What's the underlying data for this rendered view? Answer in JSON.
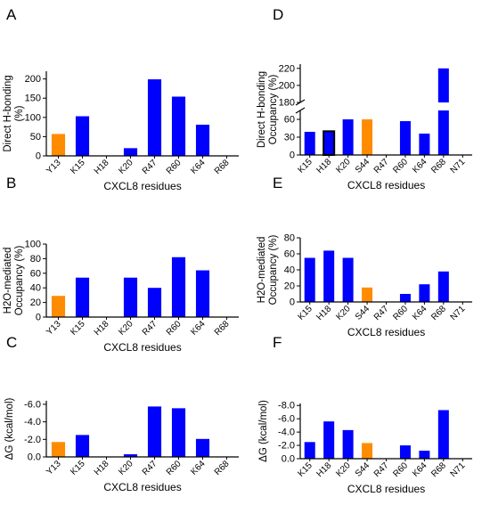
{
  "colors": {
    "blue": "#0000ff",
    "orange": "#ff8c00",
    "axis": "#000000"
  },
  "chart_data": [
    {
      "panel": "A",
      "type": "bar",
      "categories": [
        "Y13",
        "K15",
        "H18",
        "K20",
        "R47",
        "R60",
        "K64",
        "R68"
      ],
      "values": [
        57,
        103,
        0,
        20,
        199,
        154,
        81,
        0
      ],
      "highlight": [
        "Y13"
      ],
      "ylabel": [
        "Direct H-bonding",
        "(%)"
      ],
      "xlabel": "CXCL8 residues",
      "ylim": [
        0,
        220
      ],
      "yticks": [
        0,
        50,
        100,
        150,
        200
      ],
      "ytick_labels": [
        "0",
        "50",
        "100",
        "150",
        "200"
      ]
    },
    {
      "panel": "B",
      "type": "bar",
      "categories": [
        "Y13",
        "K15",
        "H18",
        "K20",
        "R47",
        "R60",
        "K64",
        "R68"
      ],
      "values": [
        29,
        54,
        0,
        54,
        40,
        82,
        64,
        0
      ],
      "highlight": [
        "Y13"
      ],
      "ylabel": [
        "H2O-mediated",
        "Occupancy (%)"
      ],
      "xlabel": "CXCL8 residues",
      "ylim": [
        0,
        100
      ],
      "yticks": [
        0,
        20,
        40,
        60,
        80,
        100
      ],
      "ytick_labels": [
        "0",
        "20",
        "40",
        "60",
        "80",
        "100"
      ]
    },
    {
      "panel": "C",
      "type": "bar",
      "categories": [
        "Y13",
        "K15",
        "H18",
        "K20",
        "R47",
        "R60",
        "K64",
        "R68"
      ],
      "values": [
        -1.7,
        -2.5,
        0,
        -0.3,
        -5.75,
        -5.55,
        -2.05,
        0
      ],
      "highlight": [
        "Y13"
      ],
      "ylabel": [
        "ΔG (kcal/mol)"
      ],
      "xlabel": "CXCL8 residues",
      "ylim": [
        0,
        -6.4
      ],
      "yticks": [
        0,
        -2,
        -4,
        -6
      ],
      "ytick_labels": [
        "0.0",
        "-2.0",
        "-4.0",
        "-6.0"
      ]
    },
    {
      "panel": "D",
      "type": "bar",
      "categories": [
        "K15",
        "H18",
        "K20",
        "S44",
        "R47",
        "R60",
        "K64",
        "R68",
        "N71"
      ],
      "values": [
        39,
        40,
        60,
        60,
        0,
        57,
        36,
        220,
        0
      ],
      "highlight": [
        "S44"
      ],
      "outlined": [
        "H18"
      ],
      "ylabel": [
        "Direct H-bonding",
        "Occupancy (%)"
      ],
      "xlabel": "CXCL8 residues",
      "broken_axis": true,
      "lower_range": [
        0,
        75
      ],
      "upper_range": [
        180,
        225
      ],
      "yticks": [
        0,
        30,
        60,
        180,
        200,
        220
      ],
      "ytick_labels": [
        "0",
        "30",
        "60",
        "180",
        "200",
        "220"
      ]
    },
    {
      "panel": "E",
      "type": "bar",
      "categories": [
        "K15",
        "H18",
        "K20",
        "S44",
        "R47",
        "R60",
        "K64",
        "R68",
        "N71"
      ],
      "values": [
        55,
        64,
        55,
        18,
        0,
        10,
        22,
        38,
        0
      ],
      "highlight": [
        "S44"
      ],
      "ylabel": [
        "H2O-mediated",
        "Occupancy (%)"
      ],
      "xlabel": "CXCL8 residues",
      "ylim": [
        0,
        80
      ],
      "yticks": [
        0,
        20,
        40,
        60,
        80
      ],
      "ytick_labels": [
        "0",
        "20",
        "40",
        "60",
        "80"
      ]
    },
    {
      "panel": "F",
      "type": "bar",
      "categories": [
        "K15",
        "H18",
        "K20",
        "S44",
        "R47",
        "R60",
        "K64",
        "R68",
        "N71"
      ],
      "values": [
        -2.5,
        -5.6,
        -4.3,
        -2.35,
        0,
        -2.0,
        -1.2,
        -7.3,
        0
      ],
      "highlight": [
        "S44"
      ],
      "ylabel": [
        "ΔG (kcal/mol)"
      ],
      "xlabel": "CXCL8 residues",
      "ylim": [
        0,
        -8.3
      ],
      "yticks": [
        0,
        -2,
        -4,
        -6,
        -8
      ],
      "ytick_labels": [
        "0.0",
        "-2.0",
        "-4.0",
        "-6.0",
        "-8.0"
      ]
    }
  ]
}
